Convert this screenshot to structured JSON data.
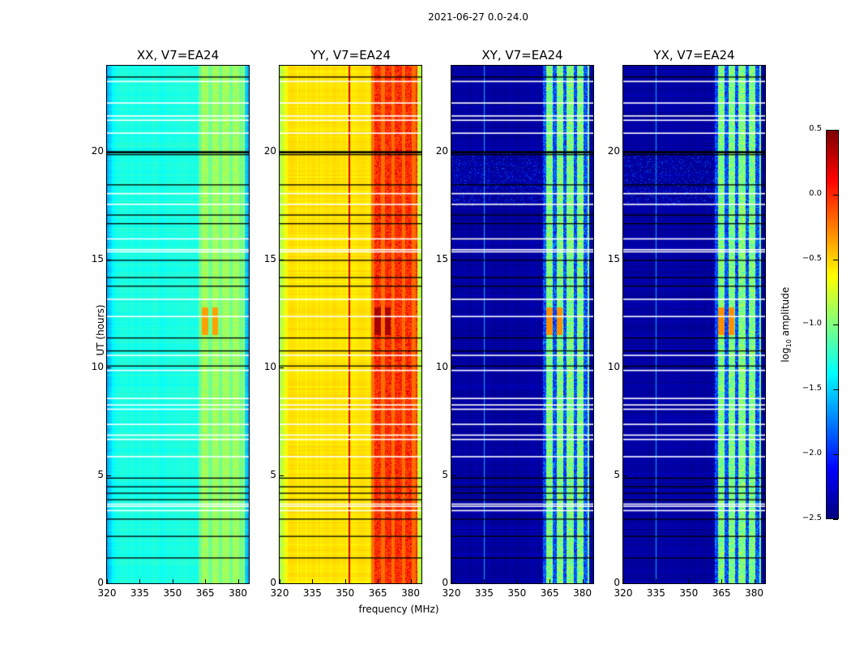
{
  "suptitle": "2021-06-27 0.0-24.0",
  "chart_data": {
    "type": "heatmap",
    "xlabel": "frequency (MHz)",
    "ylabel": "UT (hours)",
    "xlim": [
      320,
      385
    ],
    "ylim": [
      0,
      24
    ],
    "xticks": [
      "320",
      "335",
      "350",
      "365",
      "380"
    ],
    "yticks": [
      "0",
      "5",
      "10",
      "15",
      "20"
    ],
    "colorbar": {
      "label": "log",
      "label_sub": "10",
      "label_rest": " amplitude",
      "range": [
        -2.5,
        0.5
      ],
      "ticks": [
        "0.5",
        "0.0",
        "−0.5",
        "−1.0",
        "−1.5",
        "−2.0",
        "−2.5"
      ],
      "colormap": "jet"
    },
    "panels": [
      {
        "title": "XX, V7=EA24",
        "base_log_amp": -1.3,
        "band_log_amp": -0.9,
        "hot_log_amp": -0.35
      },
      {
        "title": "YY, V7=EA24",
        "base_log_amp": -0.55,
        "band_log_amp": -0.05,
        "hot_log_amp": 0.35
      },
      {
        "title": "XY, V7=EA24",
        "base_log_amp": -2.4,
        "band_log_amp": -1.0,
        "hot_log_amp": -0.3
      },
      {
        "title": "YX, V7=EA24",
        "base_log_amp": -2.4,
        "band_log_amp": -1.0,
        "hot_log_amp": -0.3
      }
    ],
    "rfi_band_mhz": [
      362,
      383
    ],
    "flagged_hours_white": [
      23.3,
      22.3,
      21.7,
      21.5,
      20.9,
      18.1,
      17.6,
      16.0,
      15.5,
      15.4,
      13.2,
      12.4,
      10.6,
      9.9,
      8.6,
      8.3,
      8.1,
      7.4,
      6.9,
      6.7,
      5.9,
      3.7,
      3.6,
      3.4
    ],
    "flagged_hours_black": [
      23.5,
      20.0,
      19.9,
      18.5,
      17.1,
      16.7,
      15.0,
      14.2,
      13.8,
      11.4,
      10.8,
      10.1,
      4.9,
      4.5,
      4.2,
      3.9,
      3.0,
      2.2,
      1.2
    ]
  }
}
